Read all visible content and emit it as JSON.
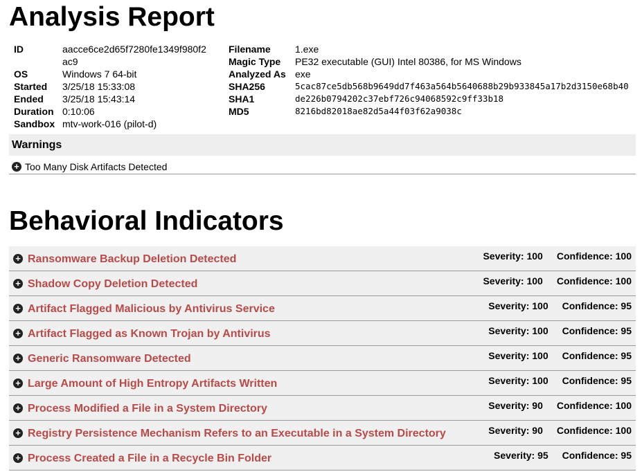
{
  "title": "Analysis Report",
  "meta_left": [
    {
      "k": "ID",
      "v": "aacce6ce2d65f7280fe1349f980f2ac9"
    },
    {
      "k": "OS",
      "v": "Windows 7 64-bit"
    },
    {
      "k": "Started",
      "v": "3/25/18 15:33:08"
    },
    {
      "k": "Ended",
      "v": "3/25/18 15:43:14"
    },
    {
      "k": "Duration",
      "v": "0:10:06"
    },
    {
      "k": "Sandbox",
      "v": "mtv-work-016 (pilot-d)"
    }
  ],
  "meta_right": [
    {
      "k": "Filename",
      "v": "1.exe"
    },
    {
      "k": "Magic Type",
      "v": "PE32 executable (GUI) Intel 80386, for MS Windows"
    },
    {
      "k": "Analyzed As",
      "v": "exe"
    },
    {
      "k": "SHA256",
      "v": "5cac87ce5db568b9649dd7f463a564b5640688b29b933845a17b2d3150e68b40"
    },
    {
      "k": "SHA1",
      "v": "de226b0794202c37ebf726c94068592c9ff33b18"
    },
    {
      "k": "MD5",
      "v": "8216bd82018ae82d5a44f03f62a9038c"
    }
  ],
  "warnings": {
    "heading": "Warnings",
    "items": [
      "Too Many Disk Artifacts Detected"
    ]
  },
  "behavioral": {
    "heading": "Behavioral Indicators",
    "items": [
      {
        "name": "Ransomware Backup Deletion Detected",
        "severity": "Severity: 100",
        "confidence": "Confidence: 100"
      },
      {
        "name": "Shadow Copy Deletion Detected",
        "severity": "Severity: 100",
        "confidence": "Confidence: 100"
      },
      {
        "name": "Artifact Flagged Malicious by Antivirus Service",
        "severity": "Severity: 100",
        "confidence": "Confidence: 95"
      },
      {
        "name": "Artifact Flagged as Known Trojan by Antivirus",
        "severity": "Severity: 100",
        "confidence": "Confidence: 95"
      },
      {
        "name": "Generic Ransomware Detected",
        "severity": "Severity: 100",
        "confidence": "Confidence: 95"
      },
      {
        "name": "Large Amount of High Entropy Artifacts Written",
        "severity": "Severity: 100",
        "confidence": "Confidence: 95"
      },
      {
        "name": "Process Modified a File in a System Directory",
        "severity": "Severity: 90",
        "confidence": "Confidence: 100"
      },
      {
        "name": "Registry Persistence Mechanism Refers to an Executable in a System Directory",
        "severity": "Severity: 90",
        "confidence": "Confidence: 100"
      },
      {
        "name": "Process Created a File in a Recycle Bin Folder",
        "severity": "Severity: 95",
        "confidence": "Confidence: 95"
      }
    ]
  },
  "colors": {
    "indicator_text": "#b94a48",
    "row_bg": "#f0f0f0",
    "divider": "#999999"
  }
}
